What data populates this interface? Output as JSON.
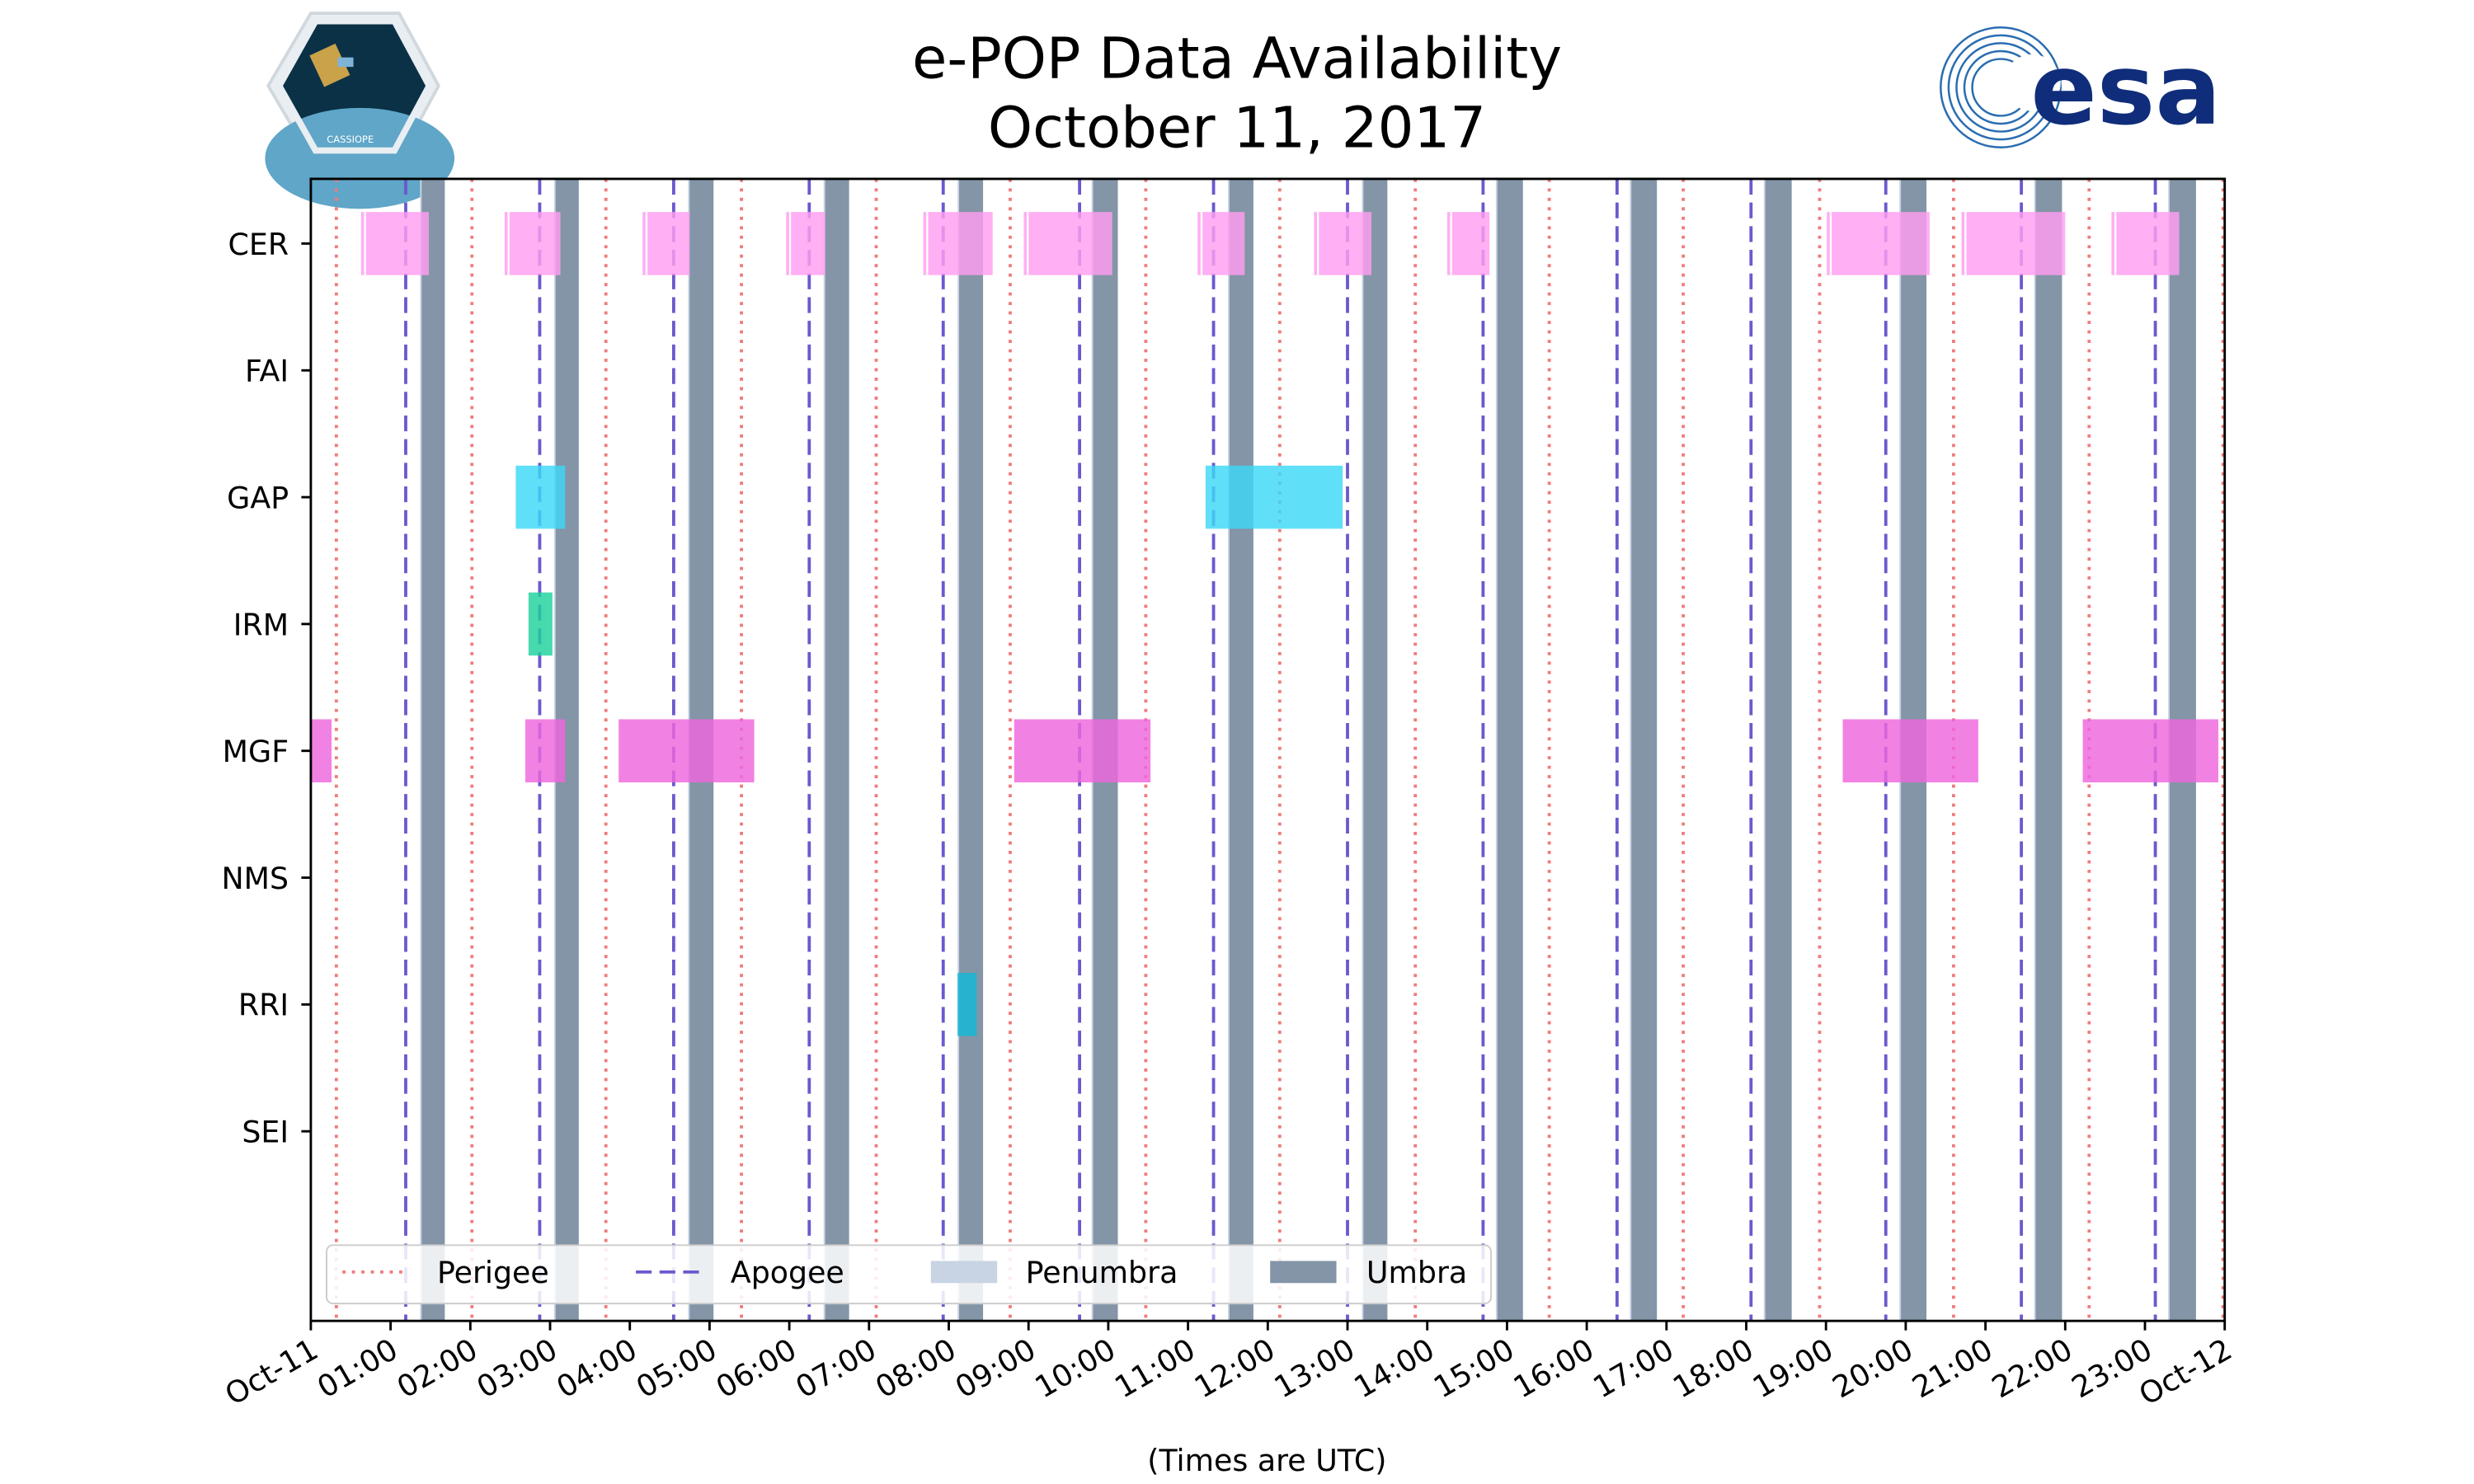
{
  "chart_data": {
    "type": "timeline",
    "title": "e-POP Data Availability",
    "subtitle": "October 11, 2017",
    "xlabel": "(Times are UTC)",
    "xlim_hours": [
      0,
      24
    ],
    "x_tick_labels": [
      "Oct-11",
      "01:00",
      "02:00",
      "03:00",
      "04:00",
      "05:00",
      "06:00",
      "07:00",
      "08:00",
      "09:00",
      "10:00",
      "11:00",
      "12:00",
      "13:00",
      "14:00",
      "15:00",
      "16:00",
      "17:00",
      "18:00",
      "19:00",
      "20:00",
      "21:00",
      "22:00",
      "23:00",
      "Oct-12"
    ],
    "instruments": [
      "CER",
      "FAI",
      "GAP",
      "IRM",
      "MGF",
      "NMS",
      "RRI",
      "SEI"
    ],
    "intervals": {
      "CER": [
        [
          0.63,
          1.48
        ],
        [
          2.43,
          3.13
        ],
        [
          4.16,
          4.75
        ],
        [
          5.96,
          6.45
        ],
        [
          7.68,
          8.55
        ],
        [
          8.94,
          10.05
        ],
        [
          11.12,
          11.71
        ],
        [
          12.58,
          13.3
        ],
        [
          14.25,
          14.78
        ],
        [
          19.01,
          20.3
        ],
        [
          20.7,
          22.0
        ],
        [
          22.58,
          23.43
        ]
      ],
      "FAI": [],
      "GAP": [
        [
          2.57,
          3.19
        ],
        [
          11.22,
          12.94
        ]
      ],
      "IRM": [
        [
          2.73,
          3.03
        ]
      ],
      "MGF": [
        [
          0.0,
          0.26
        ],
        [
          2.69,
          3.19
        ],
        [
          3.86,
          5.56
        ],
        [
          8.82,
          10.53
        ],
        [
          19.21,
          20.91
        ],
        [
          22.22,
          23.92
        ]
      ],
      "NMS": [],
      "RRI": [
        [
          8.11,
          8.35
        ]
      ],
      "SEI": []
    },
    "instrument_colors": {
      "CER": "#ff9ef0",
      "FAI": "#cccccc",
      "GAP": "#3dd8f8",
      "IRM": "#1ed29c",
      "MGF": "#ee66dd",
      "NMS": "#cccccc",
      "RRI": "#12b8d8",
      "SEI": "#cccccc"
    },
    "perigee_hours": [
      0.32,
      2.02,
      3.7,
      5.4,
      7.09,
      8.77,
      10.47,
      12.15,
      13.85,
      15.53,
      17.21,
      18.92,
      20.6,
      22.3,
      23.98
    ],
    "apogee_hours": [
      1.19,
      2.87,
      4.55,
      6.25,
      7.93,
      9.64,
      11.32,
      13.0,
      14.7,
      16.38,
      18.06,
      19.75,
      21.45,
      23.13
    ],
    "umbra_intervals": [
      [
        1.39,
        1.68
      ],
      [
        3.07,
        3.36
      ],
      [
        4.75,
        5.05
      ],
      [
        6.45,
        6.75
      ],
      [
        8.13,
        8.43
      ],
      [
        9.81,
        10.12
      ],
      [
        11.52,
        11.82
      ],
      [
        13.2,
        13.5
      ],
      [
        14.88,
        15.2
      ],
      [
        16.56,
        16.88
      ],
      [
        18.24,
        18.57
      ],
      [
        19.94,
        20.26
      ],
      [
        21.63,
        21.96
      ],
      [
        23.31,
        23.64
      ]
    ],
    "legend": {
      "placement": "bottom-left",
      "entries": [
        {
          "label": "Perigee",
          "style": "dotted",
          "color": "#f07c7c"
        },
        {
          "label": "Apogee",
          "style": "dashed",
          "color": "#6a5acd"
        },
        {
          "label": "Penumbra",
          "style": "patch",
          "color": "#c8d4e4"
        },
        {
          "label": "Umbra",
          "style": "patch",
          "color": "#8395a7"
        }
      ]
    }
  },
  "logos": {
    "left": "CASSIOPE",
    "right": "esa"
  }
}
